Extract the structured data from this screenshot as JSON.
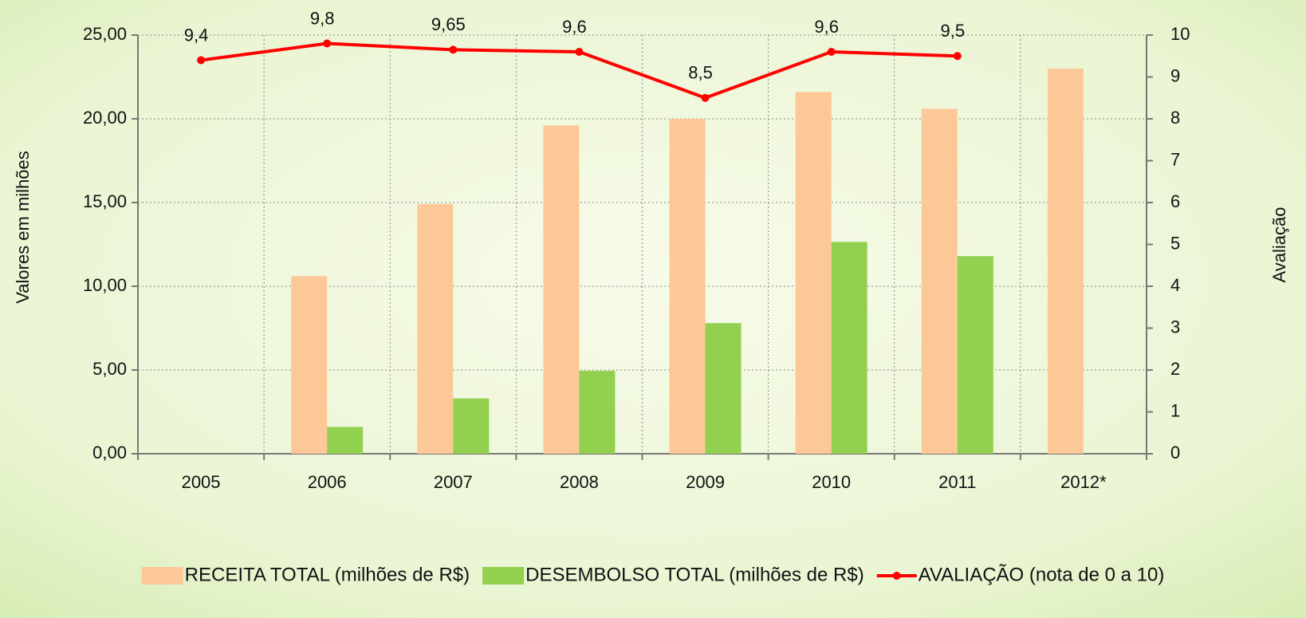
{
  "chart_data": {
    "type": "bar",
    "categories": [
      "2005",
      "2006",
      "2007",
      "2008",
      "2009",
      "2010",
      "2011",
      "2012*"
    ],
    "series": [
      {
        "name": "RECEITA TOTAL (milhões de R$)",
        "color": "#fdc897",
        "type": "bar",
        "values": [
          null,
          10.6,
          14.9,
          19.6,
          20.0,
          21.6,
          20.6,
          23.0
        ]
      },
      {
        "name": "DESEMBOLSO TOTAL (milhões de R$)",
        "color": "#92d050",
        "type": "bar",
        "values": [
          null,
          1.6,
          3.3,
          4.95,
          7.8,
          12.65,
          11.8,
          null
        ]
      },
      {
        "name": "AVALIAÇÃO (nota de 0 a 10)",
        "color": "#ff0000",
        "type": "line",
        "axis": "y2",
        "values": [
          9.4,
          9.8,
          9.65,
          9.6,
          8.5,
          9.6,
          9.5,
          null
        ],
        "value_labels": [
          "9,4",
          "9,8",
          "9,65",
          "9,6",
          "8,5",
          "9,6",
          "9,5",
          null
        ]
      }
    ],
    "ylabel": "Valores em milhões",
    "y2label": "Avaliação",
    "ylim": [
      0,
      25
    ],
    "yticks": [
      {
        "value": 0,
        "label": "0,00"
      },
      {
        "value": 5,
        "label": "5,00"
      },
      {
        "value": 10,
        "label": "10,00"
      },
      {
        "value": 15,
        "label": "15,00"
      },
      {
        "value": 20,
        "label": "20,00"
      },
      {
        "value": 25,
        "label": "25,00"
      }
    ],
    "y2lim": [
      0,
      10
    ],
    "y2ticks": [
      0,
      1,
      2,
      3,
      4,
      5,
      6,
      7,
      8,
      9,
      10
    ],
    "grid": true,
    "legend": "bottom"
  }
}
